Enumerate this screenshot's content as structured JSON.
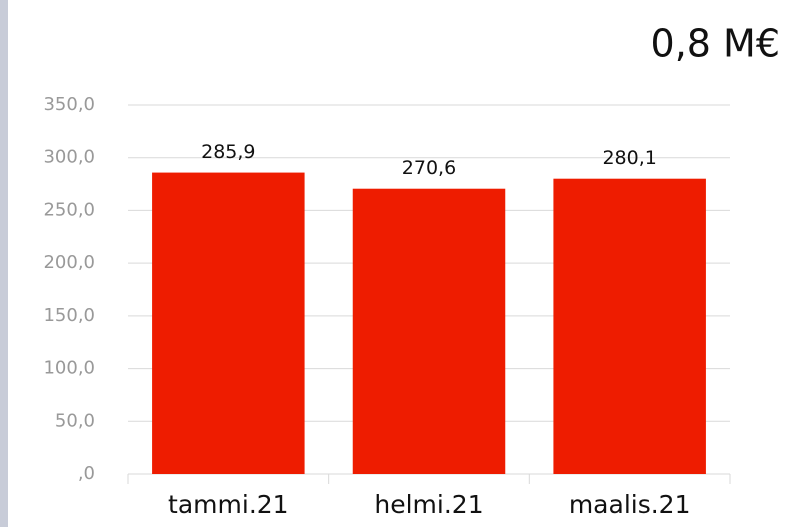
{
  "chart_data": {
    "type": "bar",
    "title": "0,8 M€",
    "categories": [
      "tammi.21",
      "helmi.21",
      "maalis.21"
    ],
    "values": [
      285.9,
      270.6,
      280.1
    ],
    "value_labels": [
      "285,9",
      "270,6",
      "280,1"
    ],
    "color": "#ee1c00",
    "ylim": [
      0,
      350
    ],
    "yticks": [
      {
        "value": 0,
        "label": ",0"
      },
      {
        "value": 50,
        "label": "50,0"
      },
      {
        "value": 100,
        "label": "100,0"
      },
      {
        "value": 150,
        "label": "150,0"
      },
      {
        "value": 200,
        "label": "200,0"
      },
      {
        "value": 250,
        "label": "250,0"
      },
      {
        "value": 300,
        "label": "300,0"
      },
      {
        "value": 350,
        "label": "350,0"
      }
    ],
    "grid": true
  }
}
